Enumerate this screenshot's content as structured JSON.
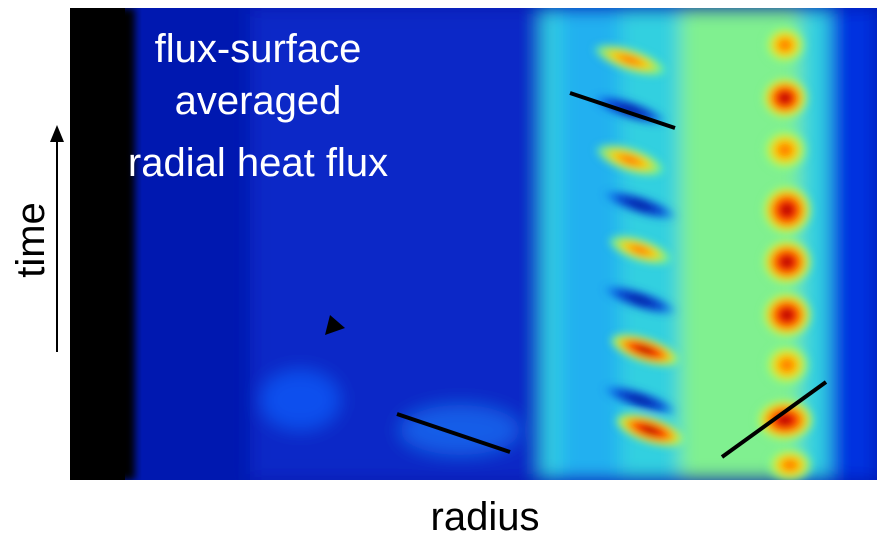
{
  "annotation": [
    "flux-surface",
    "averaged",
    "radial heat flux"
  ],
  "y_label": "time",
  "x_label": "radius"
}
